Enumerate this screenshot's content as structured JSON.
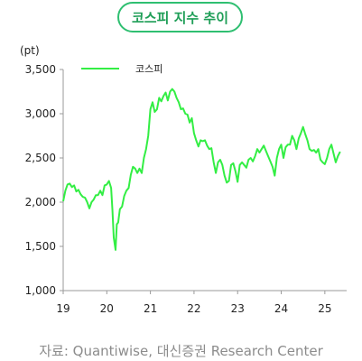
{
  "title": "코스피 지수 추이",
  "source": "자료: Quantiwise, 대신증권 Research Center",
  "colors": {
    "line": "#33ee44",
    "title_border": "#2fbf71",
    "title_text": "#1f9e57",
    "axis": "#9a9a9a"
  },
  "chart_data": {
    "type": "line",
    "unit_label": "(pt)",
    "ylim": [
      1000,
      3500
    ],
    "y_ticks": [
      1000,
      1500,
      2000,
      2500,
      3000,
      3500
    ],
    "y_tick_labels": [
      "1,000",
      "1,500",
      "2,000",
      "2,500",
      "3,000",
      "3,500"
    ],
    "xlim": [
      2019.0,
      2025.5
    ],
    "x_ticks": [
      2019,
      2020,
      2021,
      2022,
      2023,
      2024,
      2025
    ],
    "x_tick_labels": [
      "19",
      "20",
      "21",
      "22",
      "23",
      "24",
      "25"
    ],
    "grid": false,
    "legend_position": "top-left",
    "series": [
      {
        "name": "코스피",
        "x": [
          2019.0,
          2019.05,
          2019.1,
          2019.15,
          2019.2,
          2019.25,
          2019.3,
          2019.35,
          2019.4,
          2019.45,
          2019.5,
          2019.55,
          2019.6,
          2019.65,
          2019.7,
          2019.75,
          2019.8,
          2019.85,
          2019.9,
          2019.95,
          2020.0,
          2020.05,
          2020.1,
          2020.13,
          2020.16,
          2020.2,
          2020.23,
          2020.26,
          2020.3,
          2020.35,
          2020.4,
          2020.45,
          2020.5,
          2020.55,
          2020.6,
          2020.65,
          2020.7,
          2020.75,
          2020.8,
          2020.85,
          2020.9,
          2020.95,
          2021.0,
          2021.05,
          2021.1,
          2021.15,
          2021.2,
          2021.25,
          2021.3,
          2021.35,
          2021.4,
          2021.45,
          2021.5,
          2021.55,
          2021.6,
          2021.65,
          2021.7,
          2021.75,
          2021.8,
          2021.85,
          2021.9,
          2021.95,
          2022.0,
          2022.05,
          2022.1,
          2022.15,
          2022.2,
          2022.25,
          2022.3,
          2022.35,
          2022.4,
          2022.45,
          2022.5,
          2022.55,
          2022.6,
          2022.65,
          2022.7,
          2022.75,
          2022.8,
          2022.85,
          2022.9,
          2022.95,
          2023.0,
          2023.05,
          2023.1,
          2023.15,
          2023.2,
          2023.25,
          2023.3,
          2023.35,
          2023.4,
          2023.45,
          2023.5,
          2023.55,
          2023.6,
          2023.65,
          2023.7,
          2023.75,
          2023.8,
          2023.85,
          2023.9,
          2023.95,
          2024.0,
          2024.05,
          2024.1,
          2024.15,
          2024.2,
          2024.25,
          2024.3,
          2024.35,
          2024.4,
          2024.45,
          2024.5,
          2024.55,
          2024.6,
          2024.65,
          2024.7,
          2024.75,
          2024.8,
          2024.85,
          2024.9,
          2024.95,
          2025.0,
          2025.05,
          2025.1,
          2025.15,
          2025.2,
          2025.25,
          2025.3,
          2025.35
        ],
        "values": [
          2010,
          2130,
          2200,
          2210,
          2170,
          2190,
          2120,
          2140,
          2090,
          2060,
          2050,
          2000,
          1930,
          2000,
          2030,
          2080,
          2080,
          2130,
          2080,
          2190,
          2200,
          2240,
          2160,
          1900,
          1600,
          1460,
          1750,
          1770,
          1920,
          1950,
          2070,
          2130,
          2160,
          2310,
          2400,
          2380,
          2330,
          2380,
          2330,
          2500,
          2600,
          2750,
          3050,
          3130,
          3020,
          3050,
          3180,
          3140,
          3200,
          3240,
          3150,
          3250,
          3280,
          3250,
          3180,
          3130,
          3050,
          3060,
          3000,
          2990,
          2900,
          2950,
          2780,
          2700,
          2630,
          2700,
          2690,
          2700,
          2640,
          2600,
          2610,
          2450,
          2330,
          2450,
          2480,
          2420,
          2300,
          2220,
          2240,
          2420,
          2440,
          2350,
          2230,
          2420,
          2450,
          2420,
          2390,
          2480,
          2500,
          2460,
          2520,
          2600,
          2560,
          2600,
          2640,
          2580,
          2520,
          2460,
          2400,
          2300,
          2500,
          2600,
          2650,
          2500,
          2620,
          2650,
          2650,
          2750,
          2700,
          2600,
          2720,
          2780,
          2850,
          2770,
          2700,
          2600,
          2580,
          2590,
          2560,
          2600,
          2480,
          2450,
          2430,
          2500,
          2600,
          2650,
          2550,
          2450,
          2520,
          2570
        ]
      }
    ]
  }
}
